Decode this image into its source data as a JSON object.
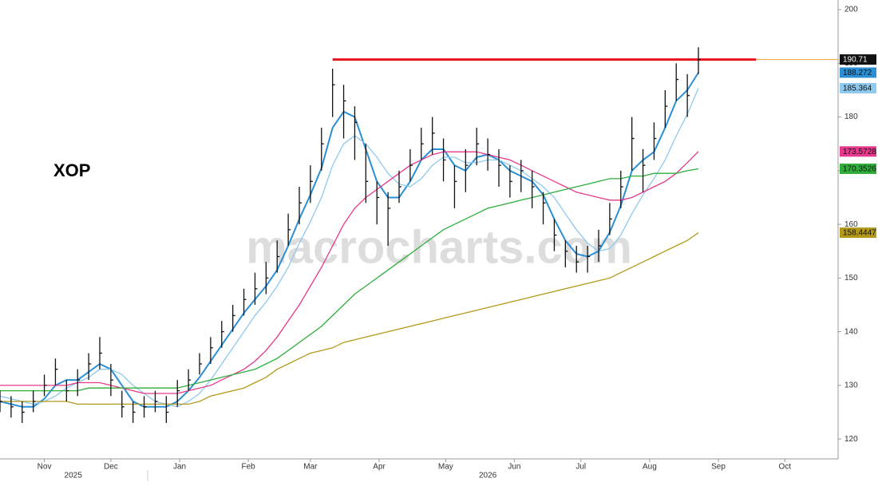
{
  "chart_data": {
    "type": "ohlc",
    "title": "XOP",
    "watermark": "macrocharts.com",
    "xlim": [
      -20,
      358
    ],
    "ylim": [
      116.3,
      201.8
    ],
    "yticks": [
      120,
      130,
      140,
      150,
      160,
      170,
      180,
      190,
      200
    ],
    "xticks": [
      {
        "value": 0,
        "label": "Nov"
      },
      {
        "value": 30,
        "label": "Dec"
      },
      {
        "value": 61,
        "label": "Jan"
      },
      {
        "value": 92,
        "label": "Feb"
      },
      {
        "value": 120,
        "label": "Mar"
      },
      {
        "value": 151,
        "label": "Apr"
      },
      {
        "value": 181,
        "label": "May"
      },
      {
        "value": 212,
        "label": "Jun"
      },
      {
        "value": 242,
        "label": "Jul"
      },
      {
        "value": 273,
        "label": "Aug"
      },
      {
        "value": 304,
        "label": "Sep"
      },
      {
        "value": 334,
        "label": "Oct"
      }
    ],
    "year_ticks": [
      {
        "value": 13,
        "label": "2025"
      },
      {
        "value": 200,
        "label": "2026"
      }
    ],
    "x": [
      -20,
      -15,
      -10,
      -5,
      0,
      5,
      10,
      15,
      20,
      25,
      30,
      35,
      40,
      45,
      50,
      55,
      60,
      65,
      70,
      75,
      80,
      85,
      90,
      95,
      100,
      105,
      110,
      115,
      120,
      125,
      130,
      135,
      140,
      145,
      150,
      155,
      160,
      165,
      170,
      175,
      180,
      185,
      190,
      195,
      200,
      205,
      210,
      215,
      220,
      225,
      230,
      235,
      240,
      245,
      250,
      255,
      260,
      265,
      270,
      275,
      280,
      285,
      290,
      295
    ],
    "high": [
      129,
      128,
      127,
      129,
      132,
      135,
      131,
      133,
      136,
      139,
      134,
      129,
      127,
      128,
      129,
      128,
      131,
      133,
      136,
      139,
      142,
      145,
      148,
      151,
      153,
      157,
      162,
      167,
      171,
      178,
      189,
      186,
      182,
      175,
      168,
      166,
      170,
      174,
      178,
      180,
      176,
      171,
      174,
      178,
      176,
      174,
      171,
      172,
      170,
      166,
      161,
      157,
      156,
      156,
      159,
      164,
      170,
      180,
      174,
      179,
      185,
      190,
      188,
      193
    ],
    "low": [
      125,
      124,
      123,
      125,
      128,
      130,
      127,
      128,
      131,
      133,
      128,
      124,
      123,
      124,
      125,
      123,
      126,
      129,
      132,
      134,
      137,
      140,
      143,
      145,
      147,
      151,
      156,
      160,
      164,
      170,
      180,
      176,
      172,
      164,
      160,
      156,
      164,
      168,
      172,
      173,
      168,
      163,
      166,
      171,
      170,
      167,
      165,
      166,
      163,
      160,
      155,
      152,
      151,
      151,
      153,
      158,
      163,
      170,
      166,
      172,
      178,
      183,
      180,
      188
    ],
    "close": [
      127,
      126,
      125,
      127,
      130,
      133,
      129,
      131,
      134,
      136,
      131,
      126,
      125,
      126,
      127,
      125,
      129,
      131,
      134,
      137,
      140,
      143,
      146,
      148,
      150,
      154,
      159,
      164,
      168,
      175,
      186,
      183,
      179,
      168,
      165,
      163,
      167,
      171,
      175,
      177,
      172,
      168,
      171,
      175,
      173,
      171,
      168,
      170,
      167,
      164,
      158,
      155,
      153,
      154,
      156,
      161,
      167,
      176,
      171,
      176,
      182,
      187,
      184,
      190.71
    ],
    "color": "#111111",
    "series": [
      {
        "color": "#2b8fd6",
        "values": [
          127,
          126.5,
          126,
          126,
          127.5,
          130,
          131,
          131,
          132.5,
          134,
          133,
          130,
          127,
          126,
          126,
          126,
          127,
          129,
          131.5,
          134.5,
          137.5,
          140.5,
          143.5,
          146,
          148.5,
          151.5,
          156,
          161,
          165.5,
          170.5,
          178,
          181,
          180,
          174,
          168,
          165,
          165,
          168,
          172,
          174,
          174,
          171,
          170,
          172.5,
          173,
          172,
          170,
          169,
          168,
          165.5,
          161,
          157,
          154.5,
          154,
          155,
          158.5,
          163.5,
          170,
          172,
          173.5,
          178,
          183,
          185,
          188.272
        ]
      },
      {
        "color": "#8ec9ee",
        "values": [
          128,
          127.5,
          127,
          126.5,
          127,
          128,
          129.5,
          130.5,
          131.5,
          133,
          133,
          132,
          130,
          128.5,
          127,
          126.5,
          126,
          127,
          128.5,
          131,
          134,
          137,
          140,
          143,
          145.5,
          148.5,
          152,
          156.5,
          160.5,
          165,
          171,
          175,
          176.5,
          175,
          172.5,
          169.5,
          167.5,
          167,
          168.5,
          171,
          172.5,
          172.5,
          171.5,
          171.5,
          172,
          172,
          171,
          170,
          168.5,
          167,
          165,
          162,
          159,
          156.5,
          155,
          155.5,
          158,
          162,
          165.5,
          168.5,
          172,
          176.5,
          180.5,
          185.364
        ]
      },
      {
        "color": "#e6388c",
        "values": [
          130,
          130,
          130,
          130,
          130,
          130,
          130,
          130.5,
          130.5,
          130.5,
          130,
          129.5,
          129,
          128.5,
          128.5,
          128.5,
          128.5,
          129,
          129.5,
          130,
          131,
          132,
          133,
          134.5,
          136.5,
          139,
          142,
          145,
          148.5,
          152,
          156,
          160,
          163,
          165,
          166.5,
          168,
          169.5,
          171,
          172,
          173,
          173.5,
          173.5,
          173.5,
          173.5,
          173,
          172.5,
          172,
          171,
          170,
          169,
          168,
          167,
          166,
          165.5,
          165,
          164.5,
          164.5,
          165,
          166,
          167,
          168,
          169.5,
          171.5,
          173.5728
        ]
      },
      {
        "color": "#2fae3c",
        "values": [
          129,
          129,
          129,
          129,
          129,
          129,
          129,
          129,
          129.5,
          129.5,
          129.5,
          129.5,
          129.5,
          129.5,
          129.5,
          129.5,
          129.5,
          130,
          130.5,
          131,
          131.5,
          132,
          132.5,
          133,
          134,
          135,
          136.5,
          138,
          139.5,
          141,
          143,
          145,
          147,
          148.5,
          150,
          151.5,
          153,
          154.5,
          156,
          157.5,
          159,
          160,
          161,
          162,
          163,
          163.5,
          164,
          164.5,
          165,
          165.5,
          166,
          166.5,
          167,
          167.5,
          168,
          168.5,
          168.5,
          169,
          169,
          169.5,
          169.5,
          169.5,
          170,
          170.3526
        ]
      },
      {
        "color": "#b3991a",
        "values": [
          127,
          127,
          127,
          127,
          127,
          127,
          127,
          126.5,
          126.5,
          126.5,
          126.5,
          126.5,
          126.5,
          126.5,
          126.5,
          126.5,
          126.5,
          126.5,
          127,
          128,
          128.5,
          129,
          129.5,
          130.5,
          131.5,
          133,
          134,
          135,
          136,
          136.5,
          137,
          138,
          138.5,
          139,
          139.5,
          140,
          140.5,
          141,
          141.5,
          142,
          142.5,
          143,
          143.5,
          144,
          144.5,
          145,
          145.5,
          146,
          146.5,
          147,
          147.5,
          148,
          148.5,
          149,
          149.5,
          150,
          151,
          152,
          153,
          154,
          155,
          156,
          157,
          158.4447
        ]
      }
    ],
    "resistance": {
      "value": 190.7,
      "x": [
        130,
        321
      ],
      "color": "#e8141b",
      "extension_color": "#f0a030"
    }
  }
}
